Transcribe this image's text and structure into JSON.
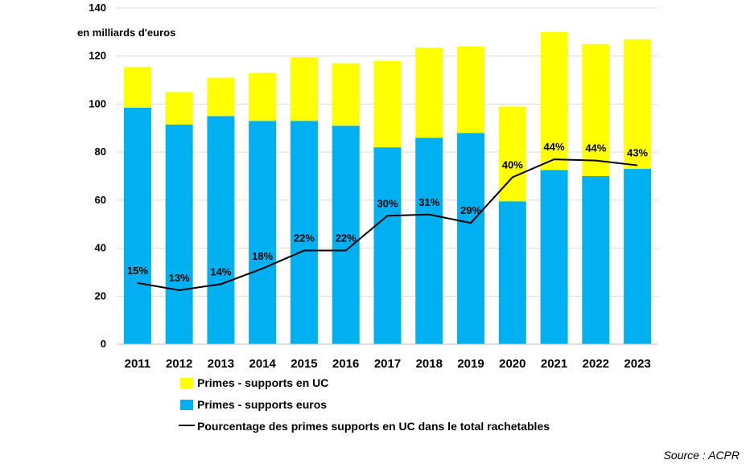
{
  "chart_data": {
    "type": "bar",
    "stacked": true,
    "unit_label": "en milliards d'euros",
    "categories": [
      "2011",
      "2012",
      "2013",
      "2014",
      "2015",
      "2016",
      "2017",
      "2018",
      "2019",
      "2020",
      "2021",
      "2022",
      "2023"
    ],
    "ylim": [
      0,
      140
    ],
    "yticks": [
      0,
      20,
      40,
      60,
      80,
      100,
      120,
      140
    ],
    "grid": true,
    "series": [
      {
        "name": "Primes - supports euros",
        "kind": "bar",
        "color": "#00B0F0",
        "values": [
          98.5,
          91.5,
          95,
          93,
          93,
          91,
          82,
          86,
          88,
          59.5,
          72.5,
          70,
          73
        ]
      },
      {
        "name": "Primes - supports en UC",
        "kind": "bar",
        "color": "#FFFF00",
        "values": [
          17,
          13.5,
          16,
          20,
          26.5,
          26,
          36,
          37.5,
          36,
          39.5,
          57.5,
          55,
          54
        ]
      },
      {
        "name": "Pourcentage des primes supports en UC dans le total rachetables",
        "kind": "line",
        "color": "#000000",
        "values": [
          25.5,
          22.5,
          25,
          31.5,
          39,
          39,
          53.5,
          54,
          50.5,
          69.5,
          77,
          76.5,
          74.5
        ],
        "labels": [
          "15%",
          "13%",
          "14%",
          "18%",
          "22%",
          "22%",
          "30%",
          "31%",
          "29%",
          "40%",
          "44%",
          "44%",
          "43%"
        ]
      }
    ],
    "legend_position": "bottom-left"
  },
  "source": "Source : ACPR"
}
